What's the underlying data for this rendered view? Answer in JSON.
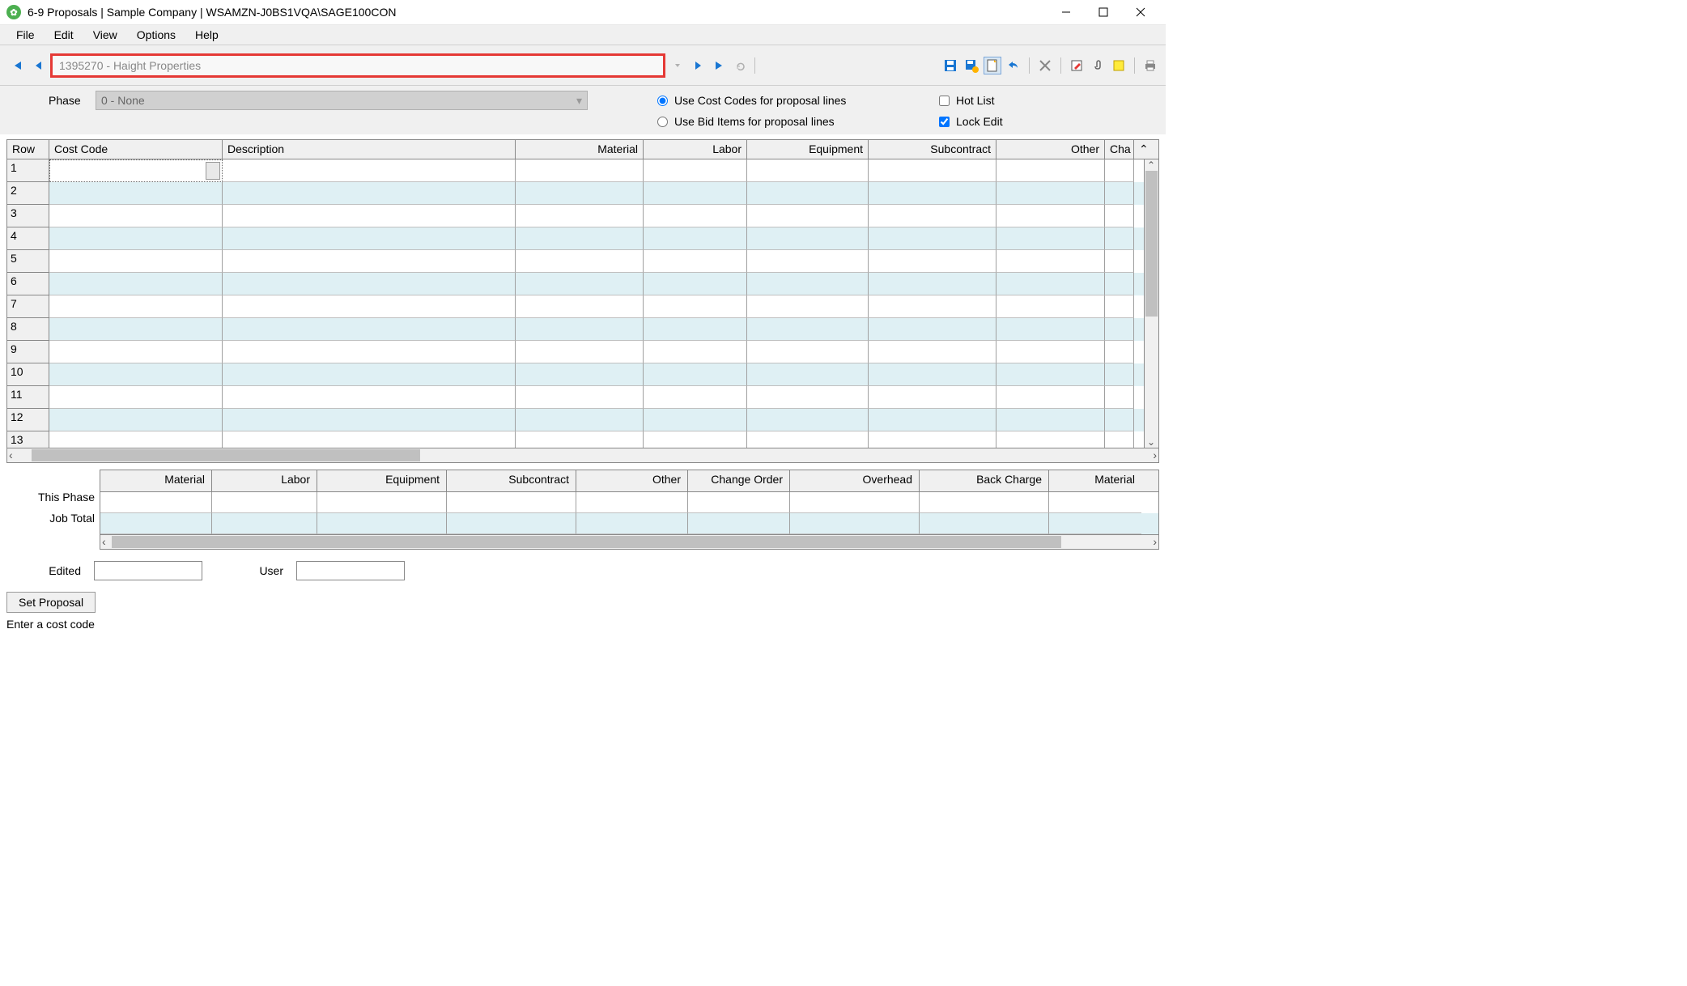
{
  "window": {
    "title": "6-9 Proposals  |  Sample Company  |  WSAMZN-J0BS1VQA\\SAGE100CON"
  },
  "menu": [
    "File",
    "Edit",
    "View",
    "Options",
    "Help"
  ],
  "record_field": "1395270 - Haight Properties",
  "phase": {
    "label": "Phase",
    "value": "0 - None"
  },
  "radios": {
    "cost_codes": "Use Cost Codes for proposal lines",
    "bid_items": "Use Bid Items for proposal lines"
  },
  "checks": {
    "hot_list": "Hot List",
    "lock_edit": "Lock Edit"
  },
  "grid": {
    "headers": {
      "row": "Row",
      "code": "Cost Code",
      "desc": "Description",
      "material": "Material",
      "labor": "Labor",
      "equipment": "Equipment",
      "subcontract": "Subcontract",
      "other": "Other",
      "cha": "Cha"
    },
    "rows": [
      "1",
      "2",
      "3",
      "4",
      "5",
      "6",
      "7",
      "8",
      "9",
      "10",
      "11",
      "12",
      "13"
    ]
  },
  "summary": {
    "headers": [
      "Material",
      "Labor",
      "Equipment",
      "Subcontract",
      "Other",
      "Change Order",
      "Overhead",
      "Back Charge",
      "Material"
    ],
    "row_labels": {
      "this_phase": "This Phase",
      "job_total": "Job Total"
    }
  },
  "footer": {
    "edited_label": "Edited",
    "user_label": "User",
    "edited_value": "",
    "user_value": "",
    "set_proposal": "Set Proposal",
    "status": "Enter a cost code"
  },
  "colors": {
    "alt_row": "#dff0f4",
    "highlight_border": "#e53935",
    "nav_blue": "#1976d2"
  }
}
